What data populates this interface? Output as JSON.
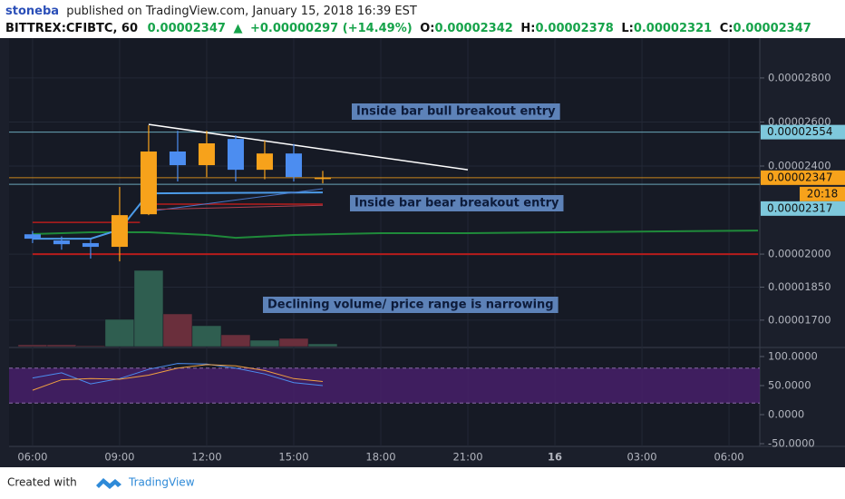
{
  "header": {
    "author": "stoneba",
    "published": "published on TradingView.com, January 15, 2018 16:39 EST",
    "symbol": "BITTREX:CFIBTC, 60",
    "last": "0.00002347",
    "arrow": "▲",
    "change": "+0.00000297 (+14.49%)",
    "ohlc": [
      {
        "label": "O:",
        "value": "0.00002342"
      },
      {
        "label": "H:",
        "value": "0.00002378"
      },
      {
        "label": "L:",
        "value": "0.00002321"
      },
      {
        "label": "C:",
        "value": "0.00002347"
      }
    ]
  },
  "chart_data": [
    {
      "type": "candlestick",
      "x": [
        6,
        7,
        8,
        9,
        10,
        11,
        12,
        13,
        14,
        15,
        16
      ],
      "open": [
        2.09e-05,
        2.062e-05,
        2.05e-05,
        2.033e-05,
        2.181e-05,
        2.466e-05,
        2.404e-05,
        2.523e-05,
        2.383e-05,
        2.457e-05,
        2.342e-05
      ],
      "high": [
        2.105e-05,
        2.08e-05,
        2.07e-05,
        2.305e-05,
        2.585e-05,
        2.56e-05,
        2.56e-05,
        2.54e-05,
        2.515e-05,
        2.5e-05,
        2.378e-05
      ],
      "low": [
        2.05e-05,
        2.02e-05,
        1.98e-05,
        1.967e-05,
        2.177e-05,
        2.33e-05,
        2.35e-05,
        2.33e-05,
        2.34e-05,
        2.33e-05,
        2.321e-05
      ],
      "close": [
        2.07e-05,
        2.045e-05,
        2.033e-05,
        2.177e-05,
        2.466e-05,
        2.404e-05,
        2.503e-05,
        2.383e-05,
        2.457e-05,
        2.35e-05,
        2.347e-05
      ],
      "volume": [
        2,
        2,
        1,
        30,
        84,
        36,
        23,
        13,
        7,
        9,
        3
      ],
      "up_color": "#f7a21b",
      "down_color": "#4c8df0",
      "volume_up_color": "#2f5e50",
      "volume_down_color": "#6a2f3c",
      "xlim": [
        5.19,
        31.06
      ],
      "xticks": [
        {
          "value": 6,
          "label": "06:00"
        },
        {
          "value": 9,
          "label": "09:00"
        },
        {
          "value": 12,
          "label": "12:00"
        },
        {
          "value": 15,
          "label": "15:00"
        },
        {
          "value": 18,
          "label": "18:00"
        },
        {
          "value": 21,
          "label": "21:00"
        },
        {
          "value": 24,
          "label": "16"
        },
        {
          "value": 27,
          "label": "03:00"
        },
        {
          "value": 30,
          "label": "06:00"
        }
      ],
      "ylim": [
        1.58e-05,
        2.981e-05
      ],
      "yticks": [
        {
          "value": 2.8e-05,
          "label": "0.00002800"
        },
        {
          "value": 2.6e-05,
          "label": "0.00002600"
        },
        {
          "value": 2.4e-05,
          "label": "0.00002400"
        },
        {
          "value": 2e-05,
          "label": "0.00002000"
        },
        {
          "value": 1.85e-05,
          "label": "0.00001850"
        },
        {
          "value": 1.7e-05,
          "label": "0.00001700"
        }
      ],
      "grid": true,
      "levels": [
        {
          "value": 2.554e-05,
          "color": "#7ec8dc"
        },
        {
          "value": 2.347e-05,
          "color": "#f7a21b"
        },
        {
          "value": 2.317e-05,
          "color": "#7ec8dc"
        }
      ],
      "countdown": "20:18",
      "lines": [
        {
          "color": "#1f8a3a",
          "width": 2,
          "x": [
            6,
            8,
            10,
            12,
            13,
            15,
            18,
            21,
            31
          ],
          "values": [
            2.091e-05,
            2.099e-05,
            2.099e-05,
            2.087e-05,
            2.074e-05,
            2.087e-05,
            2.095e-05,
            2.095e-05,
            2.107e-05
          ]
        },
        {
          "color": "#b71c1c",
          "width": 2,
          "x": [
            6,
            31
          ],
          "values": [
            2e-05,
            2e-05
          ]
        },
        {
          "color": "#b71c1c",
          "width": 1.5,
          "x": [
            6,
            9.7
          ],
          "values": [
            2.144e-05,
            2.144e-05
          ]
        },
        {
          "color": "#b71c1c",
          "width": 1.5,
          "x": [
            10,
            16
          ],
          "values": [
            2.227e-05,
            2.227e-05
          ]
        },
        {
          "color": "#4c9be8",
          "width": 2,
          "x": [
            6,
            8,
            9,
            10,
            16
          ],
          "values": [
            2.07e-05,
            2.07e-05,
            2.111e-05,
            2.276e-05,
            2.28e-05
          ]
        },
        {
          "color": "#4a78c8",
          "width": 1,
          "x": [
            10,
            16
          ],
          "values": [
            2.194e-05,
            2.297e-05
          ]
        },
        {
          "color": "#b04050",
          "width": 1,
          "x": [
            10,
            16
          ],
          "values": [
            2.202e-05,
            2.222e-05
          ]
        },
        {
          "color": "#ffffff",
          "width": 1.5,
          "x": [
            10,
            21
          ],
          "values": [
            2.589e-05,
            2.383e-05
          ]
        }
      ],
      "annotations": [
        "Inside bar bull breakout entry",
        "Inside bar bear breakout entry",
        "Declining volume/ price range is narrowing"
      ]
    },
    {
      "type": "line",
      "x": [
        6,
        7,
        8,
        9,
        10,
        11,
        12,
        13,
        14,
        15,
        16
      ],
      "series": [
        {
          "color": "#4c8df0",
          "values": [
            63,
            72,
            53,
            62,
            78,
            88,
            87,
            80,
            70,
            55,
            50
          ]
        },
        {
          "color": "#f0a040",
          "values": [
            42,
            60,
            62,
            61,
            68,
            80,
            86,
            84,
            76,
            62,
            57
          ]
        }
      ],
      "ylim": [
        -51.5,
        114
      ],
      "yticks": [
        {
          "value": 100,
          "label": "100.0000"
        },
        {
          "value": 50,
          "label": "50.0000"
        },
        {
          "value": 0,
          "label": "0.0000"
        },
        {
          "value": -50,
          "label": "-50.0000"
        }
      ],
      "band": [
        20,
        80
      ],
      "band_color": "#4a1f6e"
    }
  ],
  "footer": {
    "created": "Created with",
    "brand": "TradingView"
  }
}
